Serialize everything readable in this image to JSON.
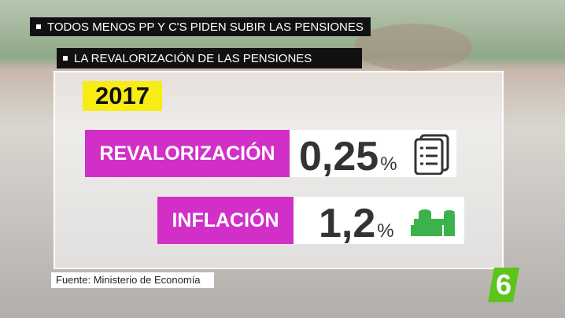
{
  "header": {
    "title": "TODOS MENOS PP Y C'S PIDEN SUBIR LAS PENSIONES",
    "subtitle": "LA REVALORIZACIÓN DE LAS PENSIONES"
  },
  "year": "2017",
  "rows": [
    {
      "label": "REVALORIZACIÓN",
      "value": "0,25",
      "unit": "%"
    },
    {
      "label": "INFLACIÓN",
      "value": "1,2",
      "unit": "%"
    }
  ],
  "source": "Fuente: Ministerio de Economía",
  "logo": "6"
}
